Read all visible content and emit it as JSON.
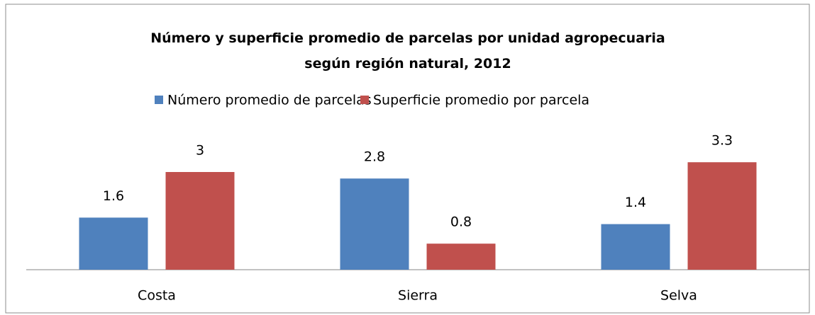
{
  "chart_data": {
    "type": "bar",
    "title": "Número y superficie promedio de parcelas por unidad agropecuaria según región natural, 2012",
    "categories": [
      "Costa",
      "Sierra",
      "Selva"
    ],
    "series": [
      {
        "name": "Número promedio de parcelas",
        "color": "#4f81bd",
        "values": [
          1.6,
          2.8,
          1.4
        ]
      },
      {
        "name": "Superficie promedio por parcela",
        "color": "#c0504d",
        "values": [
          3,
          0.8,
          3.3
        ]
      }
    ],
    "legend": "top"
  }
}
